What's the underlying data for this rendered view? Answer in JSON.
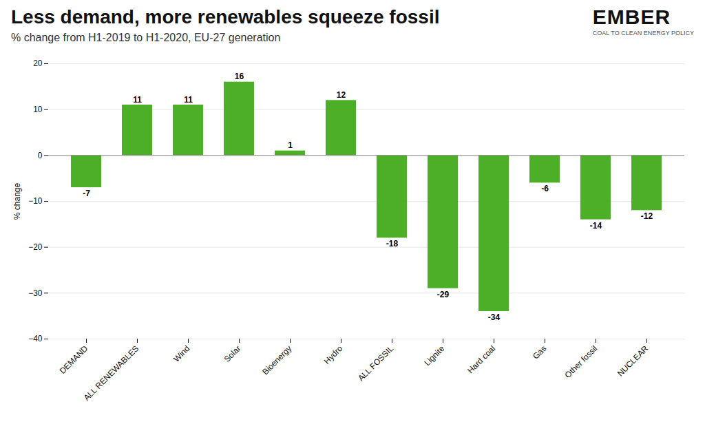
{
  "chart_data": {
    "type": "bar",
    "title": "Less demand, more renewables squeeze fossil",
    "subtitle": "% change from H1-2019 to H1-2020, EU-27 generation",
    "annotations": [
      "EMBER",
      "COAL TO CLEAN ENERGY POLICY"
    ],
    "ylabel": "% change",
    "categories": [
      "DEMAND",
      "ALL RENEWABLES",
      "Wind",
      "Solar",
      "Bioenergy",
      "Hydro",
      "ALL FOSSIL",
      "Lignite",
      "Hard coal",
      "Gas",
      "Other fossil",
      "NUCLEAR"
    ],
    "values": [
      -7,
      11,
      11,
      16,
      1,
      12,
      -18,
      -29,
      -34,
      -6,
      -14,
      -12
    ],
    "color": "#4caf27",
    "ylim": [
      -40,
      20
    ],
    "yticks": [
      -40,
      -30,
      -20,
      -10,
      0,
      10,
      20
    ],
    "grid": true,
    "data_labels": true
  }
}
